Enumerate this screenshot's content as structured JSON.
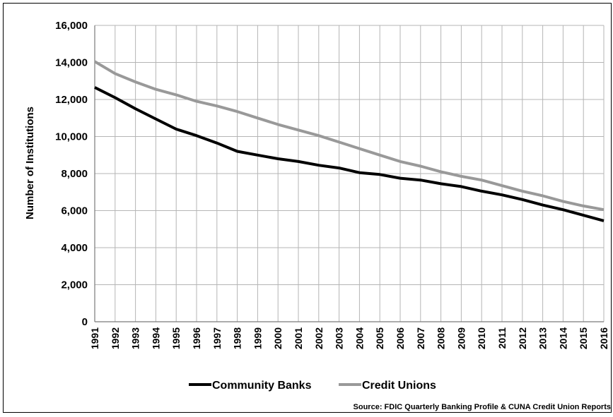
{
  "chart_data": {
    "type": "line",
    "title": "",
    "xlabel": "",
    "ylabel": "Number of Institutions",
    "ylim": [
      0,
      16000
    ],
    "yticks": [
      0,
      2000,
      4000,
      6000,
      8000,
      10000,
      12000,
      14000,
      16000
    ],
    "ytick_labels": [
      "0",
      "2,000",
      "4,000",
      "6,000",
      "8,000",
      "10,000",
      "12,000",
      "14,000",
      "16,000"
    ],
    "x": [
      "1991",
      "1992",
      "1993",
      "1994",
      "1995",
      "1996",
      "1997",
      "1998",
      "1999",
      "2000",
      "2001",
      "2002",
      "2003",
      "2004",
      "2005",
      "2006",
      "2007",
      "2008",
      "2009",
      "2010",
      "2011",
      "2012",
      "2013",
      "2014",
      "2015",
      "2016"
    ],
    "grid": true,
    "legend_position": "bottom",
    "series": [
      {
        "name": "Community Banks",
        "color": "#000000",
        "values": [
          12650,
          12100,
          11500,
          10950,
          10400,
          10050,
          9650,
          9200,
          9000,
          8800,
          8650,
          8450,
          8300,
          8050,
          7950,
          7750,
          7650,
          7450,
          7300,
          7050,
          6850,
          6600,
          6300,
          6050,
          5750,
          5450
        ]
      },
      {
        "name": "Credit Unions",
        "color": "#999999",
        "values": [
          14050,
          13400,
          12950,
          12550,
          12250,
          11900,
          11650,
          11350,
          11000,
          10650,
          10350,
          10050,
          9700,
          9350,
          9000,
          8650,
          8400,
          8100,
          7850,
          7650,
          7350,
          7050,
          6800,
          6500,
          6250,
          6050
        ]
      }
    ],
    "source_note": "Source:  FDIC Quarterly Banking Profile & CUNA Credit Union Reports"
  }
}
